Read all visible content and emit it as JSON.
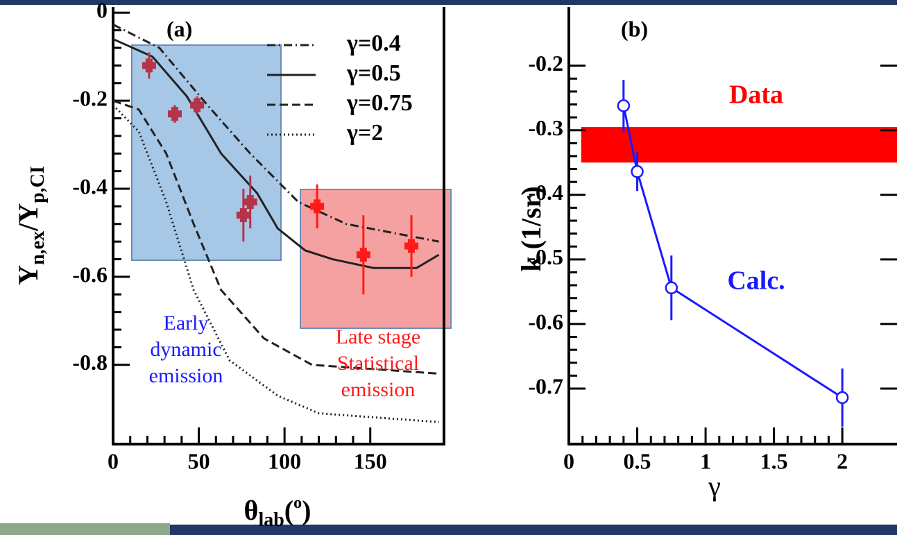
{
  "chart_data": [
    {
      "type": "line",
      "annotations": [
        "(a)",
        "Early",
        "dynamic",
        "emission",
        "Late stage",
        "Statistical",
        "emission"
      ],
      "x_label_parts": [
        "θ",
        "lab",
        "(",
        "o",
        ")"
      ],
      "y_label_parts": [
        "Y",
        "n,ex",
        "/Y",
        "p,CI"
      ],
      "xlim": [
        0,
        193
      ],
      "ylim": [
        -0.98,
        0.013
      ],
      "xticks": [
        0,
        50,
        100,
        150
      ],
      "yticks": [
        0,
        -0.2,
        -0.4,
        -0.6,
        -0.8
      ],
      "series": [
        {
          "name": "γ=0.4",
          "style": "dashdot",
          "color": "#222222",
          "x": [
            0,
            27,
            55,
            80,
            108,
            136,
            190
          ],
          "values": [
            -0.027,
            -0.08,
            -0.21,
            -0.32,
            -0.43,
            -0.48,
            -0.52
          ]
        },
        {
          "name": "γ=0.5",
          "style": "solid",
          "color": "#222222",
          "x": [
            0,
            23,
            43,
            63,
            84,
            96,
            112,
            128,
            152,
            177,
            190
          ],
          "values": [
            -0.06,
            -0.1,
            -0.19,
            -0.32,
            -0.41,
            -0.49,
            -0.54,
            -0.56,
            -0.58,
            -0.58,
            -0.55
          ]
        },
        {
          "name": "γ=0.75",
          "style": "dashed",
          "color": "#222222",
          "x": [
            0,
            15,
            31,
            47,
            63,
            88,
            116,
            190
          ],
          "values": [
            -0.2,
            -0.22,
            -0.32,
            -0.48,
            -0.63,
            -0.74,
            -0.8,
            -0.82
          ]
        },
        {
          "name": "γ=2",
          "style": "dotted",
          "color": "#222222",
          "x": [
            0,
            15,
            31,
            47,
            68,
            96,
            120,
            190
          ],
          "values": [
            -0.21,
            -0.27,
            -0.43,
            -0.63,
            -0.79,
            -0.87,
            -0.91,
            -0.93
          ]
        }
      ],
      "points": [
        {
          "color": "#b5344a",
          "x": [
            21,
            36,
            49,
            76,
            80
          ],
          "values": [
            -0.12,
            -0.23,
            -0.21,
            -0.46,
            -0.43
          ],
          "errors": [
            0.03,
            0.02,
            0.02,
            0.06,
            0.06
          ]
        },
        {
          "color": "#ff1a1a",
          "x": [
            119,
            146,
            174
          ],
          "values": [
            -0.44,
            -0.55,
            -0.53
          ],
          "errors": [
            0.05,
            0.09,
            0.07
          ]
        }
      ]
    },
    {
      "type": "line",
      "annotations": [
        "(b)",
        "Data",
        "Calc."
      ],
      "x_label": "γ",
      "y_label": "k (1/sr)",
      "xlim": [
        0,
        2.4
      ],
      "ylim": [
        -0.786,
        -0.109
      ],
      "xticks": [
        0,
        0.5,
        1,
        1.5,
        2
      ],
      "yticks": [
        -0.2,
        -0.3,
        -0.4,
        -0.5,
        -0.6,
        -0.7
      ],
      "band": {
        "color": "#ff0000",
        "xstart": 0.09,
        "ylim": [
          -0.35,
          -0.295
        ]
      },
      "series": [
        {
          "color": "#1a1aff",
          "x": [
            0.4,
            0.5,
            0.75,
            2
          ],
          "values": [
            -0.262,
            -0.364,
            -0.544,
            -0.714
          ],
          "errors": [
            0.04,
            0.03,
            0.05,
            0.045
          ]
        }
      ]
    }
  ]
}
